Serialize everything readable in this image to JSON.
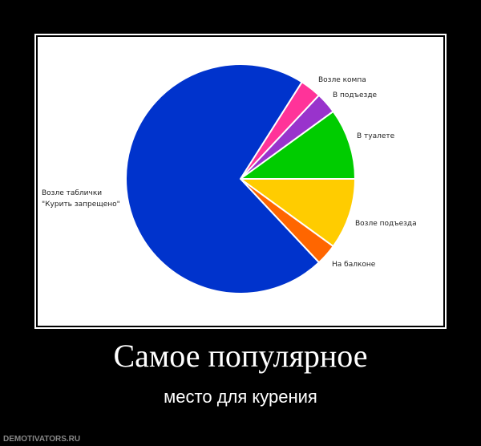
{
  "chart_data": {
    "type": "pie",
    "categories": [
      "Возле компа",
      "В подъезде",
      "В туалете",
      "Возле подъезда",
      "На балконе",
      "Возле таблички \"Курить запрещено\""
    ],
    "values": [
      3,
      3,
      10,
      10,
      3,
      71
    ],
    "colors": [
      "#ff3399",
      "#9933cc",
      "#00cc00",
      "#ffcc00",
      "#ff6600",
      "#0033cc"
    ],
    "labels": {
      "komp": "Возле компа",
      "podezd": "В подъезде",
      "tualet": "В туалете",
      "vozle_podezda": "Возле подъезда",
      "balkon": "На балконе",
      "tablichka_1": "Возле таблички",
      "tablichka_2": "\"Курить запрещено\""
    }
  },
  "poster": {
    "title": "Самое популярное",
    "subtitle": "место для курения",
    "watermark": "DEMOTIVATORS.RU"
  }
}
